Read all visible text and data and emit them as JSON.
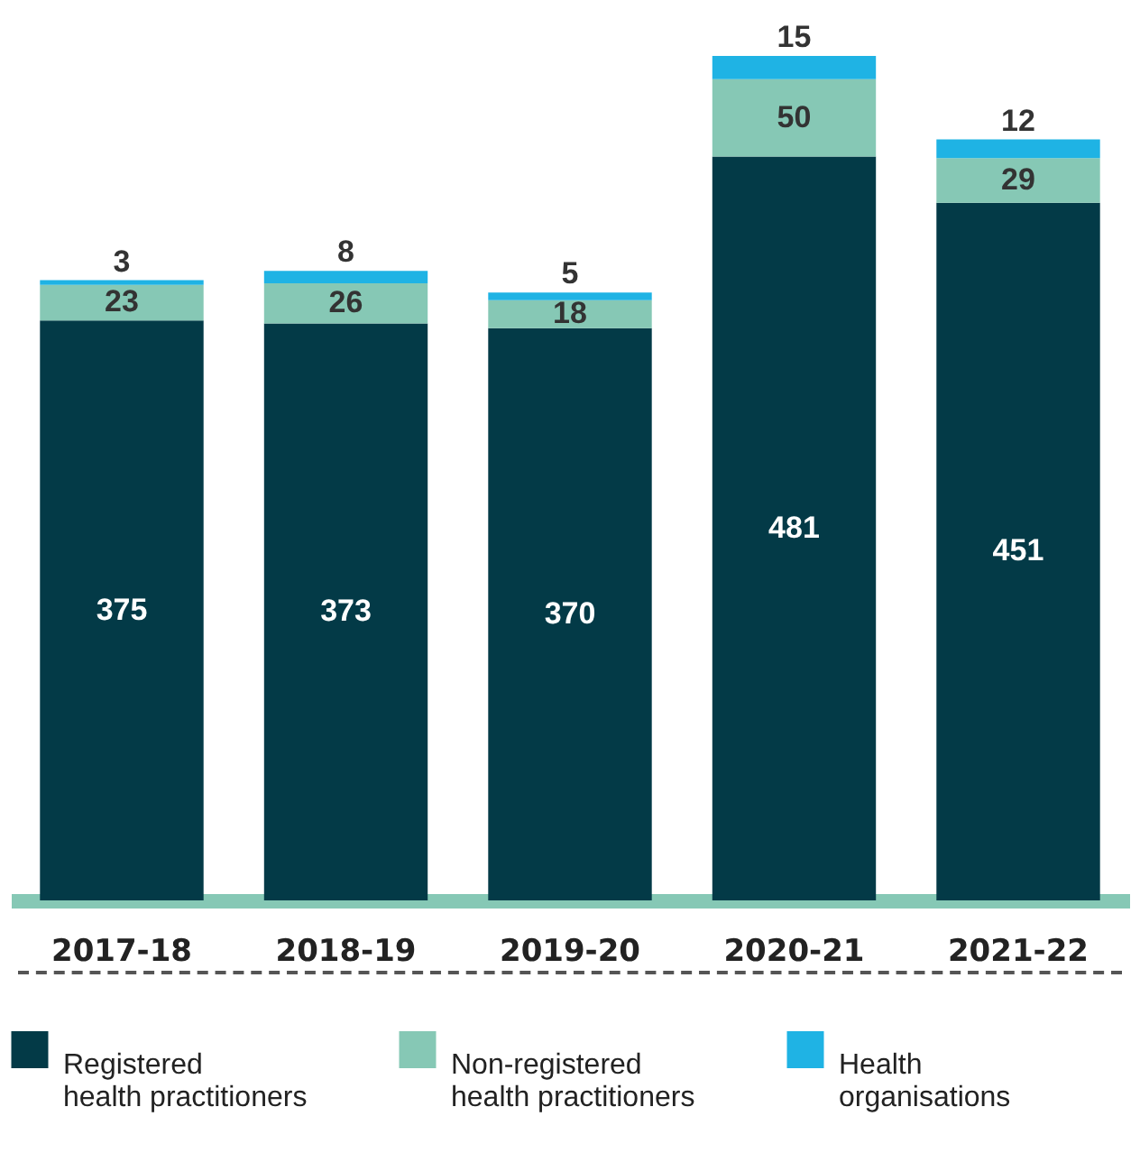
{
  "chart_data": {
    "type": "bar",
    "stacked": true,
    "categories": [
      "2017-18",
      "2018-19",
      "2019-20",
      "2020-21",
      "2021-22"
    ],
    "series": [
      {
        "name": "Registered health practitioners",
        "color": "#033a47",
        "values": [
          375,
          373,
          370,
          481,
          451
        ]
      },
      {
        "name": "Non-registered health practitioners",
        "color": "#86c8b5",
        "values": [
          23,
          26,
          18,
          50,
          29
        ]
      },
      {
        "name": "Health organisations",
        "color": "#1fb3e4",
        "values": [
          3,
          8,
          5,
          15,
          12
        ]
      }
    ],
    "data_labels": true,
    "legend": "bottom"
  }
}
